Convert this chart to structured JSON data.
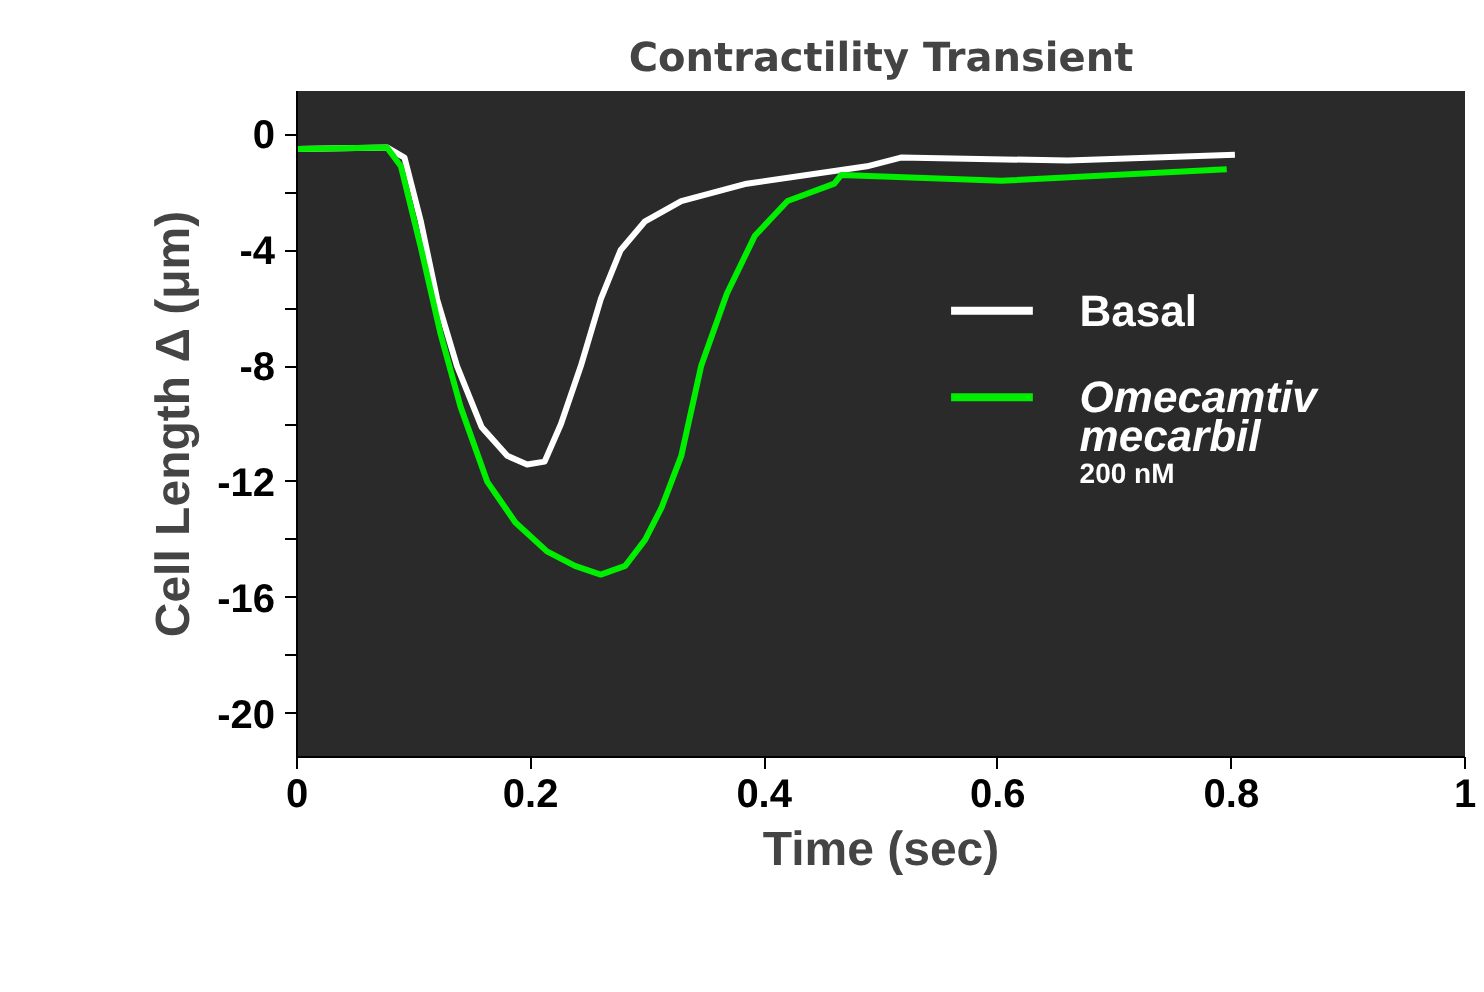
{
  "chart_data": {
    "type": "line",
    "title": "Contractility Transient",
    "xlabel": "Time (sec)",
    "ylabel": "Cell Length Δ (μm)",
    "xlim": [
      0,
      1
    ],
    "xticks": [
      0,
      0.2,
      0.4,
      0.6,
      0.8,
      1
    ],
    "ylim": [
      -21.5,
      1.5
    ],
    "yticks": [
      0,
      {
        "value": -2,
        "label": null
      },
      -4,
      {
        "value": -6,
        "label": null
      },
      -8,
      {
        "value": -10,
        "label": null
      },
      -12,
      {
        "value": -14,
        "label": null
      },
      -16,
      {
        "value": -18,
        "label": null
      },
      -20
    ],
    "grid": false,
    "legend": "right",
    "annotations": [
      "200 nM"
    ],
    "series": [
      {
        "name": "Basal",
        "color": "#ffffff",
        "x": [
          0,
          0.077,
          0.092,
          0.106,
          0.12,
          0.137,
          0.158,
          0.18,
          0.197,
          0.212,
          0.226,
          0.243,
          0.26,
          0.277,
          0.298,
          0.329,
          0.385,
          0.488,
          0.517,
          0.66,
          0.803
        ],
        "values": [
          -0.5,
          -0.45,
          -0.8,
          -3.0,
          -5.7,
          -8.0,
          -10.1,
          -11.1,
          -11.4,
          -11.3,
          -10.0,
          -8.0,
          -5.7,
          -4.0,
          -3.0,
          -2.3,
          -1.7,
          -1.1,
          -0.8,
          -0.9,
          -0.7
        ]
      },
      {
        "name": "Omecamtiv mecarbil",
        "color": "#00ee00",
        "x": [
          0,
          0.077,
          0.089,
          0.106,
          0.123,
          0.14,
          0.163,
          0.187,
          0.214,
          0.238,
          0.26,
          0.281,
          0.298,
          0.312,
          0.329,
          0.346,
          0.368,
          0.392,
          0.42,
          0.46,
          0.466,
          0.603,
          0.796
        ],
        "values": [
          -0.5,
          -0.45,
          -1.1,
          -3.9,
          -6.9,
          -9.4,
          -12.0,
          -13.4,
          -14.4,
          -14.9,
          -15.2,
          -14.9,
          -14.0,
          -12.9,
          -11.1,
          -8.0,
          -5.5,
          -3.5,
          -2.3,
          -1.7,
          -1.4,
          -1.6,
          -1.2
        ]
      }
    ]
  }
}
